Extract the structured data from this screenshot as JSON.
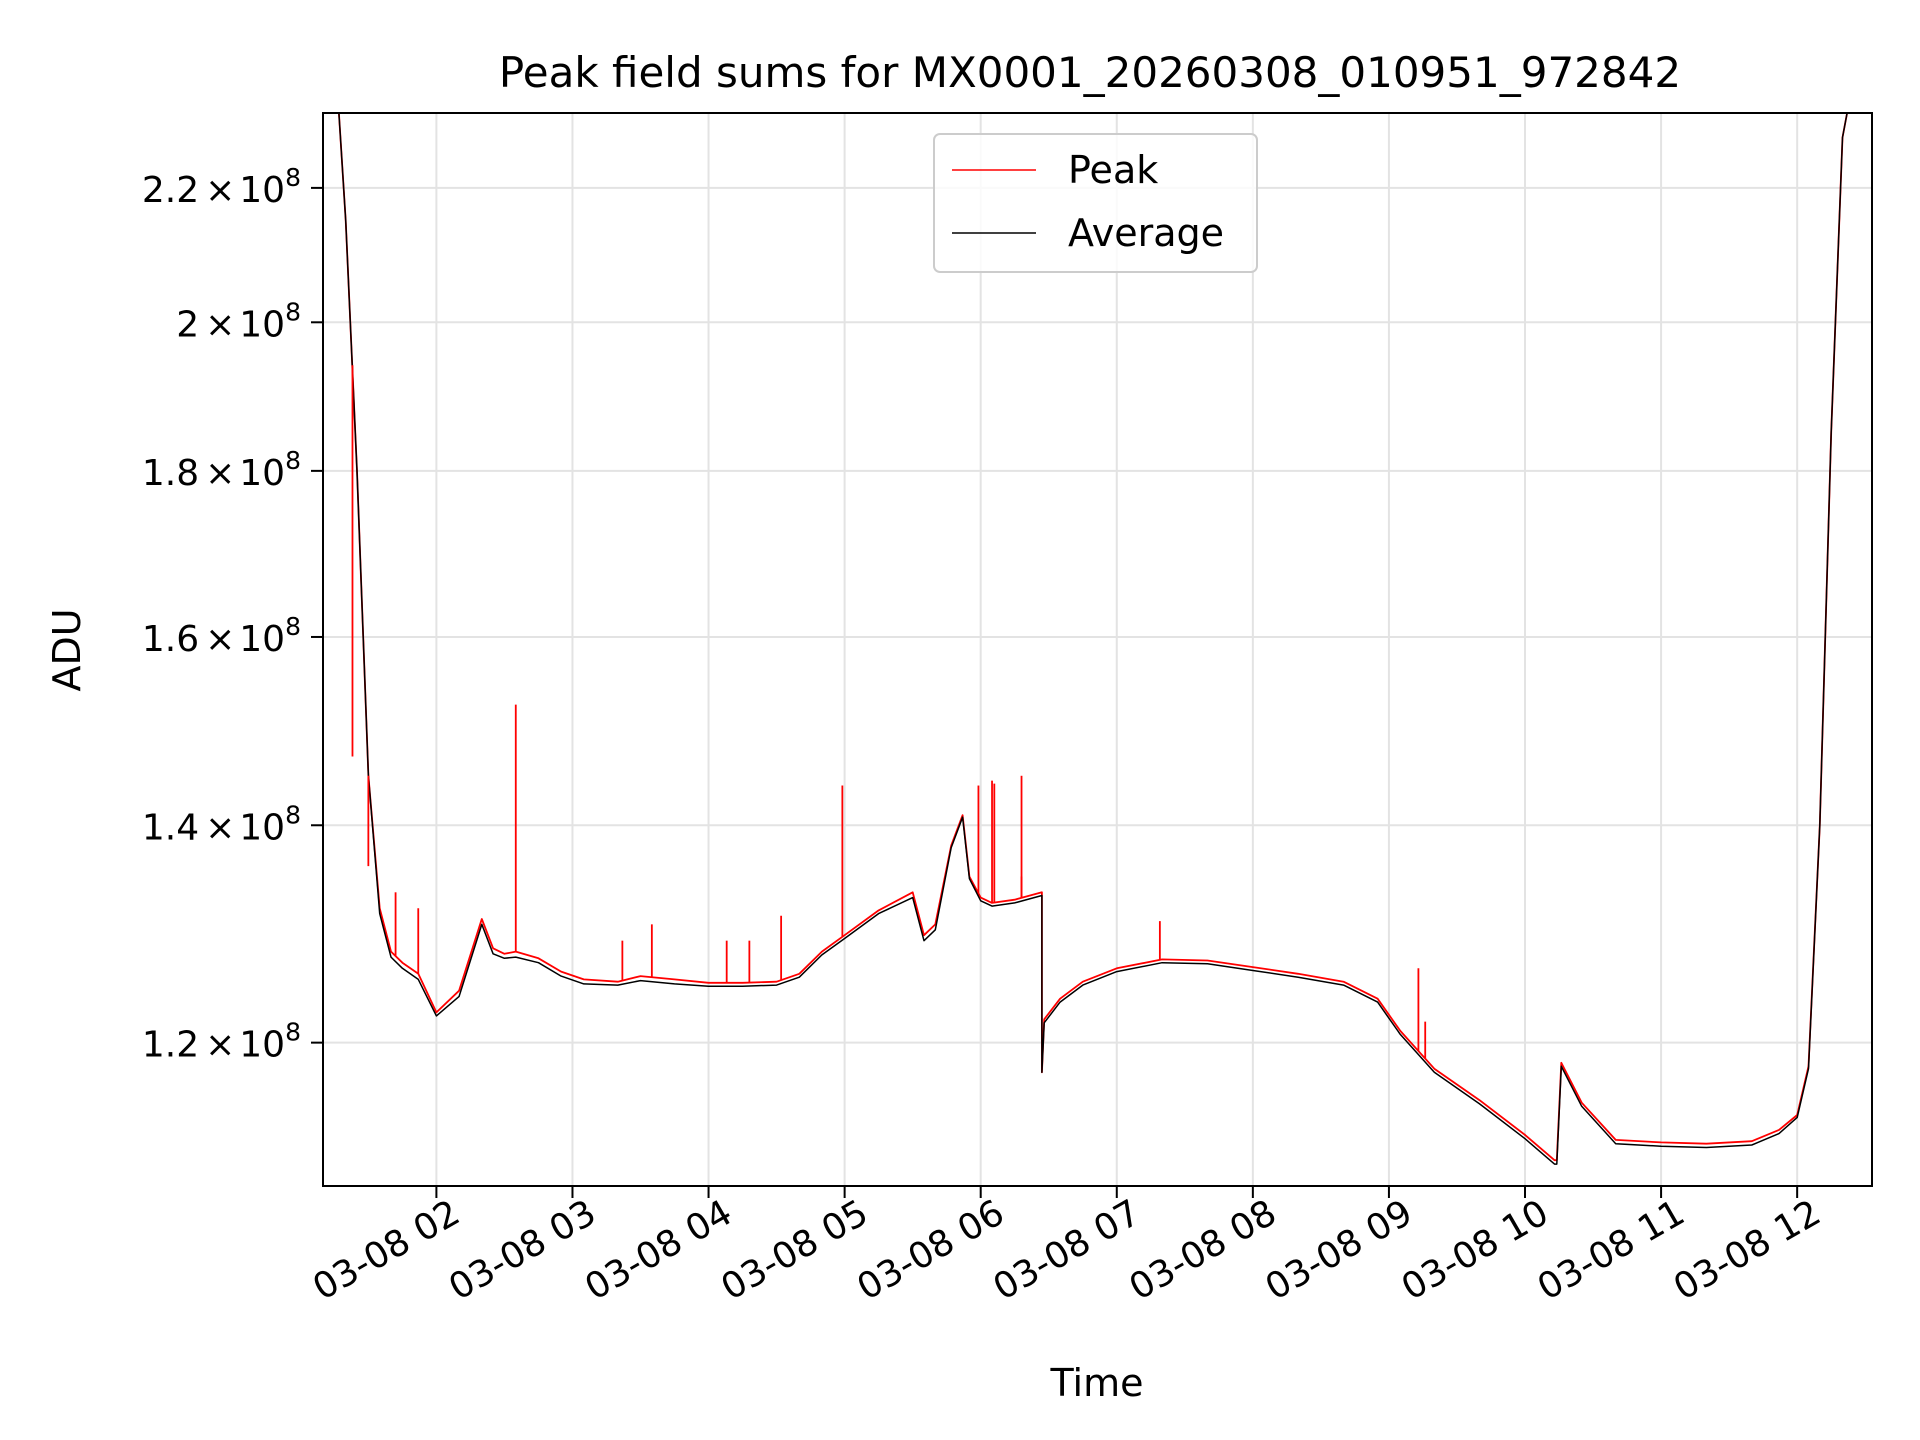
{
  "chart_data": {
    "type": "line",
    "title": "Peak field sums for MX0001_20260308_010951_972842",
    "xlabel": "Time",
    "ylabel": "ADU",
    "y_scale": "log",
    "grid": true,
    "legend_position": "upper center",
    "xlim": [
      "2026-03-08 01:10",
      "2026-03-08 12:33"
    ],
    "ylim": [
      108400000,
      232000000
    ],
    "x_ticks": [
      {
        "value": "2026-03-08 02:00",
        "label": "03-08 02"
      },
      {
        "value": "2026-03-08 03:00",
        "label": "03-08 03"
      },
      {
        "value": "2026-03-08 04:00",
        "label": "03-08 04"
      },
      {
        "value": "2026-03-08 05:00",
        "label": "03-08 05"
      },
      {
        "value": "2026-03-08 06:00",
        "label": "03-08 06"
      },
      {
        "value": "2026-03-08 07:00",
        "label": "03-08 07"
      },
      {
        "value": "2026-03-08 08:00",
        "label": "03-08 08"
      },
      {
        "value": "2026-03-08 09:00",
        "label": "03-08 09"
      },
      {
        "value": "2026-03-08 10:00",
        "label": "03-08 10"
      },
      {
        "value": "2026-03-08 11:00",
        "label": "03-08 11"
      },
      {
        "value": "2026-03-08 12:00",
        "label": "03-08 12"
      }
    ],
    "y_ticks": [
      {
        "value": 120000000,
        "mantissa": "1.2"
      },
      {
        "value": 140000000,
        "mantissa": "1.4"
      },
      {
        "value": 160000000,
        "mantissa": "1.6"
      },
      {
        "value": 180000000,
        "mantissa": "1.8"
      },
      {
        "value": 200000000,
        "mantissa": "2"
      },
      {
        "value": 220000000,
        "mantissa": "2.2"
      }
    ],
    "y_tick_base": "10",
    "y_tick_exponent": "8",
    "series": [
      {
        "name": "Peak",
        "color": "#ff0000",
        "x": [
          "2026-03-08 01:17",
          "2026-03-08 01:20",
          "2026-03-08 01:25",
          "2026-03-08 01:30",
          "2026-03-08 01:35",
          "2026-03-08 01:40",
          "2026-03-08 01:45",
          "2026-03-08 01:52",
          "2026-03-08 02:00",
          "2026-03-08 02:10",
          "2026-03-08 02:20",
          "2026-03-08 02:25",
          "2026-03-08 02:30",
          "2026-03-08 02:35",
          "2026-03-08 02:45",
          "2026-03-08 02:55",
          "2026-03-08 03:05",
          "2026-03-08 03:20",
          "2026-03-08 03:30",
          "2026-03-08 03:45",
          "2026-03-08 04:00",
          "2026-03-08 04:15",
          "2026-03-08 04:30",
          "2026-03-08 04:40",
          "2026-03-08 04:50",
          "2026-03-08 05:00",
          "2026-03-08 05:15",
          "2026-03-08 05:30",
          "2026-03-08 05:35",
          "2026-03-08 05:40",
          "2026-03-08 05:47",
          "2026-03-08 05:52",
          "2026-03-08 05:55",
          "2026-03-08 06:00",
          "2026-03-08 06:05",
          "2026-03-08 06:15",
          "2026-03-08 06:27",
          "2026-03-08 06:27",
          "2026-03-08 06:28",
          "2026-03-08 06:35",
          "2026-03-08 06:45",
          "2026-03-08 07:00",
          "2026-03-08 07:20",
          "2026-03-08 07:40",
          "2026-03-08 08:00",
          "2026-03-08 08:20",
          "2026-03-08 08:40",
          "2026-03-08 08:55",
          "2026-03-08 09:05",
          "2026-03-08 09:20",
          "2026-03-08 09:40",
          "2026-03-08 10:00",
          "2026-03-08 10:13",
          "2026-03-08 10:14",
          "2026-03-08 10:16",
          "2026-03-08 10:25",
          "2026-03-08 10:40",
          "2026-03-08 11:00",
          "2026-03-08 11:20",
          "2026-03-08 11:40",
          "2026-03-08 11:52",
          "2026-03-08 12:00",
          "2026-03-08 12:05",
          "2026-03-08 12:10",
          "2026-03-08 12:15",
          "2026-03-08 12:20",
          "2026-03-08 12:22"
        ],
        "values": [
          232000000,
          215000000,
          180000000,
          145000000,
          132000000,
          128000000,
          127000000,
          126000000,
          122600000,
          124500000,
          131000000,
          128300000,
          127800000,
          128000000,
          127400000,
          126200000,
          125500000,
          125300000,
          125800000,
          125500000,
          125200000,
          125200000,
          125300000,
          126000000,
          128000000,
          129500000,
          131800000,
          133500000,
          129500000,
          130500000,
          138000000,
          141000000,
          135000000,
          133000000,
          132500000,
          132800000,
          133500000,
          117500000,
          122000000,
          123800000,
          125300000,
          126500000,
          127300000,
          127200000,
          126600000,
          126000000,
          125300000,
          123800000,
          121000000,
          117800000,
          115200000,
          112400000,
          110400000,
          110400000,
          118300000,
          115000000,
          112000000,
          111800000,
          111700000,
          111900000,
          112800000,
          114000000,
          118000000,
          140000000,
          185000000,
          228000000,
          232000000
        ]
      },
      {
        "name": "Average",
        "color": "#000000",
        "x": [
          "2026-03-08 01:17",
          "2026-03-08 01:20",
          "2026-03-08 01:25",
          "2026-03-08 01:30",
          "2026-03-08 01:35",
          "2026-03-08 01:40",
          "2026-03-08 01:45",
          "2026-03-08 01:52",
          "2026-03-08 02:00",
          "2026-03-08 02:10",
          "2026-03-08 02:20",
          "2026-03-08 02:25",
          "2026-03-08 02:30",
          "2026-03-08 02:35",
          "2026-03-08 02:45",
          "2026-03-08 02:55",
          "2026-03-08 03:05",
          "2026-03-08 03:20",
          "2026-03-08 03:30",
          "2026-03-08 03:45",
          "2026-03-08 04:00",
          "2026-03-08 04:15",
          "2026-03-08 04:30",
          "2026-03-08 04:40",
          "2026-03-08 04:50",
          "2026-03-08 05:00",
          "2026-03-08 05:15",
          "2026-03-08 05:30",
          "2026-03-08 05:35",
          "2026-03-08 05:40",
          "2026-03-08 05:47",
          "2026-03-08 05:52",
          "2026-03-08 05:55",
          "2026-03-08 06:00",
          "2026-03-08 06:05",
          "2026-03-08 06:15",
          "2026-03-08 06:27",
          "2026-03-08 06:27",
          "2026-03-08 06:28",
          "2026-03-08 06:35",
          "2026-03-08 06:45",
          "2026-03-08 07:00",
          "2026-03-08 07:20",
          "2026-03-08 07:40",
          "2026-03-08 08:00",
          "2026-03-08 08:20",
          "2026-03-08 08:40",
          "2026-03-08 08:55",
          "2026-03-08 09:05",
          "2026-03-08 09:20",
          "2026-03-08 09:40",
          "2026-03-08 10:00",
          "2026-03-08 10:13",
          "2026-03-08 10:14",
          "2026-03-08 10:16",
          "2026-03-08 10:25",
          "2026-03-08 10:40",
          "2026-03-08 11:00",
          "2026-03-08 11:20",
          "2026-03-08 11:40",
          "2026-03-08 11:52",
          "2026-03-08 12:00",
          "2026-03-08 12:05",
          "2026-03-08 12:10",
          "2026-03-08 12:15",
          "2026-03-08 12:20",
          "2026-03-08 12:22"
        ],
        "values": [
          232000000,
          215000000,
          180000000,
          145000000,
          131500000,
          127500000,
          126500000,
          125500000,
          122300000,
          124000000,
          130500000,
          127800000,
          127400000,
          127500000,
          127000000,
          125800000,
          125100000,
          125000000,
          125400000,
          125100000,
          124900000,
          124900000,
          125000000,
          125700000,
          127700000,
          129200000,
          131500000,
          133000000,
          129000000,
          130000000,
          137800000,
          140800000,
          134800000,
          132700000,
          132200000,
          132500000,
          133200000,
          117500000,
          121700000,
          123500000,
          125000000,
          126200000,
          127000000,
          126900000,
          126300000,
          125700000,
          125000000,
          123500000,
          120700000,
          117500000,
          114900000,
          112100000,
          110100000,
          110100000,
          118000000,
          114700000,
          111700000,
          111500000,
          111400000,
          111600000,
          112500000,
          113800000,
          117800000,
          140000000,
          185000000,
          228000000,
          232000000
        ]
      }
    ],
    "spikes": [
      {
        "series": "Peak",
        "x": "2026-03-08 01:23",
        "value": 147000000
      },
      {
        "series": "Peak",
        "x": "2026-03-08 01:30",
        "value": 136000000
      },
      {
        "series": "Peak",
        "x": "2026-03-08 01:42",
        "value": 133500000
      },
      {
        "series": "Peak",
        "x": "2026-03-08 01:52",
        "value": 132000000
      },
      {
        "series": "Peak",
        "x": "2026-03-08 02:35",
        "value": 152500000
      },
      {
        "series": "Peak",
        "x": "2026-03-08 03:22",
        "value": 129000000
      },
      {
        "series": "Peak",
        "x": "2026-03-08 03:35",
        "value": 130500000
      },
      {
        "series": "Peak",
        "x": "2026-03-08 04:08",
        "value": 129000000
      },
      {
        "series": "Peak",
        "x": "2026-03-08 04:18",
        "value": 129000000
      },
      {
        "series": "Peak",
        "x": "2026-03-08 04:32",
        "value": 131300000
      },
      {
        "series": "Peak",
        "x": "2026-03-08 04:59",
        "value": 144000000
      },
      {
        "series": "Peak",
        "x": "2026-03-08 05:59",
        "value": 144000000
      },
      {
        "series": "Peak",
        "x": "2026-03-08 06:05",
        "value": 144500000
      },
      {
        "series": "Peak",
        "x": "2026-03-08 06:06",
        "value": 144200000
      },
      {
        "series": "Peak",
        "x": "2026-03-08 06:18",
        "value": 145000000
      },
      {
        "series": "Peak",
        "x": "2026-03-08 06:18",
        "value": 135000000
      },
      {
        "series": "Peak",
        "x": "2026-03-08 07:19",
        "value": 130800000
      },
      {
        "series": "Peak",
        "x": "2026-03-08 09:13",
        "value": 126500000
      },
      {
        "series": "Peak",
        "x": "2026-03-08 09:16",
        "value": 121800000
      }
    ]
  }
}
